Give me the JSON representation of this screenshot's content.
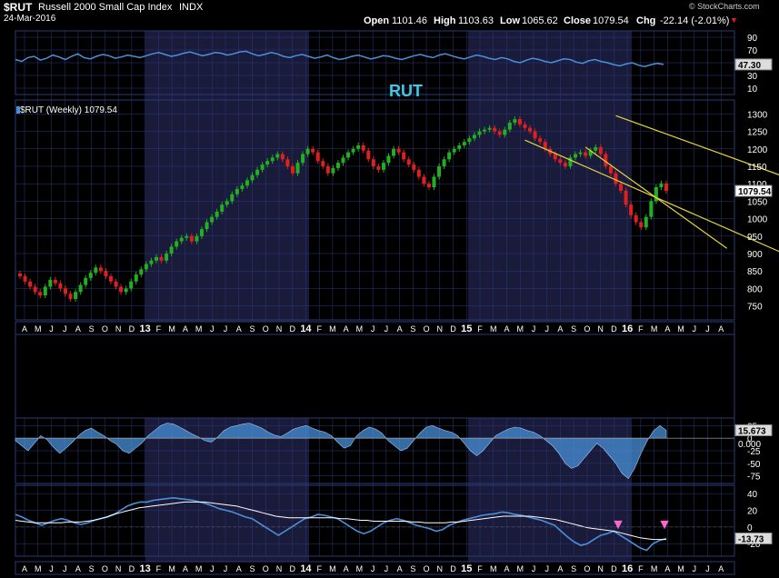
{
  "header": {
    "symbol": "$RUT",
    "name": "Russell 2000 Small Cap Index",
    "exchange": "INDX",
    "date": "24-Mar-2016",
    "open_label": "Open",
    "open": "1101.46",
    "high_label": "High",
    "high": "1103.63",
    "low_label": "Low",
    "low": "1065.62",
    "close_label": "Close",
    "close": "1079.54",
    "chg_label": "Chg",
    "chg": "-22.14 (-2.01%)",
    "chg_arrow": "▼",
    "watermark": "© StockCharts.com"
  },
  "colors": {
    "background": "#000000",
    "shade": "#1a1a3a",
    "grid": "#2a3a78",
    "up": "#22b022",
    "down": "#e02020",
    "indicator": "#4a90d9",
    "trendline": "#e6d33a",
    "annotation": "#3ec9e6",
    "marker": "#ff66cc",
    "signal": "#ffffff"
  },
  "annotation": {
    "text": "RUT"
  },
  "chart_data": [
    {
      "type": "line",
      "panel": "top-indicator",
      "y_ticks": [
        10,
        30,
        50,
        70,
        90
      ],
      "ylim": [
        0,
        100
      ],
      "last_value_label": "47.30",
      "series": [
        {
          "values": [
            55,
            52,
            58,
            60,
            54,
            57,
            62,
            59,
            55,
            60,
            64,
            58,
            56,
            60,
            63,
            61,
            57,
            59,
            62,
            60,
            58,
            61,
            64,
            66,
            63,
            60,
            62,
            65,
            67,
            64,
            61,
            63,
            66,
            65,
            62,
            64,
            67,
            68,
            64,
            61,
            63,
            66,
            64,
            60,
            58,
            61,
            63,
            60,
            57,
            59,
            62,
            58,
            55,
            57,
            60,
            62,
            59,
            56,
            58,
            61,
            60,
            57,
            55,
            58,
            61,
            63,
            60,
            58,
            62,
            64,
            61,
            58,
            56,
            59,
            62,
            60,
            57,
            55,
            58,
            56,
            52,
            50,
            54,
            57,
            55,
            52,
            50,
            53,
            56,
            55,
            51,
            49,
            53,
            55,
            52,
            50,
            47,
            45,
            48,
            50,
            46,
            44,
            47,
            49,
            47.3
          ]
        }
      ]
    },
    {
      "type": "line",
      "panel": "price",
      "title": "$RUT (Weekly) 1079.54",
      "y_ticks": [
        750,
        800,
        850,
        900,
        950,
        1000,
        1050,
        1100,
        1150,
        1200,
        1250,
        1300
      ],
      "ylim": [
        710,
        1340
      ],
      "last_value_label": "1079.54",
      "x_tick_labels": [
        "A",
        "M",
        "J",
        "J",
        "A",
        "S",
        "O",
        "N",
        "D",
        "13",
        "F",
        "M",
        "A",
        "M",
        "J",
        "J",
        "A",
        "S",
        "O",
        "N",
        "D",
        "14",
        "F",
        "M",
        "A",
        "M",
        "J",
        "J",
        "A",
        "S",
        "O",
        "N",
        "D",
        "15",
        "F",
        "M",
        "A",
        "M",
        "J",
        "J",
        "A",
        "S",
        "O",
        "N",
        "D",
        "16",
        "F",
        "M",
        "A",
        "M",
        "J",
        "J",
        "A"
      ],
      "closes": [
        835,
        820,
        805,
        790,
        780,
        805,
        825,
        815,
        800,
        785,
        770,
        790,
        810,
        830,
        845,
        860,
        850,
        835,
        820,
        805,
        790,
        800,
        820,
        840,
        855,
        870,
        880,
        890,
        880,
        900,
        920,
        935,
        945,
        950,
        935,
        950,
        970,
        990,
        1005,
        1020,
        1040,
        1050,
        1070,
        1085,
        1095,
        1110,
        1125,
        1140,
        1155,
        1165,
        1175,
        1185,
        1170,
        1150,
        1130,
        1160,
        1185,
        1200,
        1190,
        1165,
        1150,
        1130,
        1145,
        1160,
        1175,
        1190,
        1200,
        1210,
        1195,
        1170,
        1150,
        1140,
        1160,
        1180,
        1200,
        1190,
        1170,
        1155,
        1140,
        1120,
        1100,
        1090,
        1120,
        1150,
        1170,
        1190,
        1200,
        1210,
        1220,
        1230,
        1240,
        1250,
        1255,
        1260,
        1250,
        1240,
        1255,
        1275,
        1285,
        1270,
        1260,
        1250,
        1230,
        1220,
        1200,
        1185,
        1170,
        1160,
        1150,
        1175,
        1185,
        1190,
        1180,
        1195,
        1205,
        1185,
        1150,
        1130,
        1100,
        1080,
        1040,
        1010,
        990,
        975,
        1005,
        1050,
        1090,
        1101,
        1079.54
      ],
      "trendlines": [
        {
          "from": {
            "week": 118,
            "price": 1295
          },
          "to": {
            "week": 160,
            "price": 1075
          }
        },
        {
          "from": {
            "week": 100,
            "price": 1225
          },
          "to": {
            "week": 160,
            "price": 845
          }
        },
        {
          "from": {
            "week": 112,
            "price": 1205
          },
          "to": {
            "week": 140,
            "price": 915
          }
        }
      ]
    },
    {
      "type": "area",
      "panel": "middle-indicator",
      "y_ticks": [
        -75,
        -50,
        -25,
        0,
        25
      ],
      "ylim": [
        -90,
        40
      ],
      "last_value_label": "15.673",
      "zero_label": "0.000",
      "series": [
        {
          "values": [
            -5,
            -15,
            -25,
            -10,
            5,
            -3,
            -18,
            -30,
            -20,
            -8,
            5,
            15,
            20,
            12,
            5,
            -5,
            -12,
            -25,
            -30,
            -20,
            -10,
            5,
            15,
            25,
            30,
            28,
            22,
            15,
            8,
            2,
            -5,
            -8,
            2,
            15,
            22,
            25,
            28,
            30,
            25,
            20,
            12,
            6,
            3,
            10,
            18,
            22,
            25,
            20,
            15,
            12,
            5,
            -8,
            -20,
            -15,
            5,
            15,
            22,
            18,
            10,
            -5,
            -15,
            -25,
            -20,
            -5,
            10,
            22,
            25,
            20,
            15,
            12,
            5,
            -10,
            -25,
            -35,
            -25,
            -10,
            5,
            12,
            18,
            22,
            20,
            15,
            12,
            5,
            -5,
            -15,
            -30,
            -50,
            -60,
            -55,
            -40,
            -25,
            -10,
            -20,
            -35,
            -50,
            -70,
            -80,
            -60,
            -30,
            -5,
            15,
            25,
            15.673
          ]
        }
      ]
    },
    {
      "type": "line",
      "panel": "bottom-indicator",
      "y_ticks": [
        -20,
        0,
        20,
        40
      ],
      "ylim": [
        -35,
        50
      ],
      "last_value_label": "-13.73",
      "series": [
        {
          "values": [
            15,
            12,
            8,
            5,
            2,
            5,
            8,
            10,
            8,
            5,
            3,
            5,
            8,
            10,
            12,
            15,
            20,
            25,
            28,
            30,
            30,
            32,
            33,
            34,
            35,
            34,
            33,
            32,
            30,
            28,
            25,
            22,
            20,
            18,
            15,
            12,
            10,
            5,
            0,
            -5,
            -10,
            -5,
            0,
            5,
            10,
            12,
            15,
            14,
            12,
            10,
            5,
            0,
            -5,
            -8,
            -5,
            0,
            5,
            8,
            10,
            8,
            5,
            2,
            0,
            -2,
            -5,
            -3,
            2,
            5,
            8,
            10,
            12,
            14,
            15,
            16,
            18,
            17,
            15,
            14,
            12,
            10,
            8,
            5,
            2,
            -5,
            -12,
            -18,
            -22,
            -20,
            -15,
            -10,
            -8,
            -5,
            -10,
            -15,
            -20,
            -25,
            -28,
            -20,
            -16,
            -13.73
          ]
        },
        {
          "values": [
            8,
            7,
            6,
            5,
            5,
            5,
            5,
            5,
            6,
            6,
            6,
            7,
            8,
            10,
            12,
            15,
            17,
            19,
            21,
            23,
            24,
            25,
            26,
            27,
            28,
            29,
            30,
            30,
            30,
            30,
            29,
            28,
            27,
            26,
            25,
            23,
            21,
            19,
            17,
            15,
            13,
            12,
            11,
            11,
            11,
            11,
            11,
            11,
            11,
            11,
            10,
            10,
            9,
            8,
            8,
            7,
            7,
            7,
            7,
            7,
            7,
            6,
            6,
            5,
            5,
            5,
            5,
            6,
            6,
            7,
            8,
            9,
            10,
            11,
            12,
            13,
            13,
            13,
            13,
            13,
            12,
            11,
            10,
            9,
            7,
            5,
            3,
            1,
            -1,
            -2,
            -3,
            -4,
            -5,
            -7,
            -9,
            -11,
            -13,
            -14,
            -15,
            -15,
            -15
          ]
        }
      ],
      "markers": [
        {
          "label": "▼",
          "near": "16"
        },
        {
          "label": "▼",
          "near": "M"
        }
      ]
    }
  ]
}
